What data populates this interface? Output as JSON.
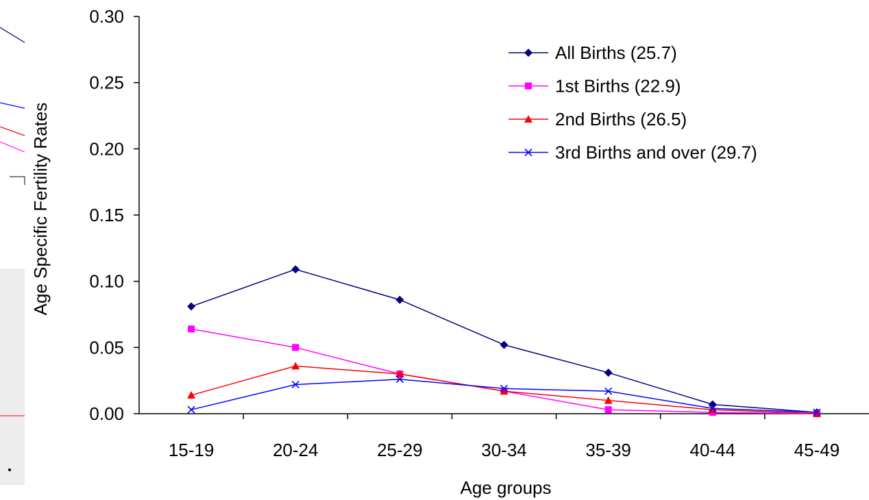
{
  "chart_data": {
    "type": "line",
    "title": "",
    "xlabel": "Age groups",
    "ylabel": "Age Specific Fertility Rates",
    "categories": [
      "15-19",
      "20-24",
      "25-29",
      "30-34",
      "35-39",
      "40-44",
      "45-49"
    ],
    "ylim": [
      0,
      0.3
    ],
    "yticks": [
      "0.00",
      "0.05",
      "0.10",
      "0.15",
      "0.20",
      "0.25",
      "0.30"
    ],
    "grid": false,
    "legend_position": "top-right",
    "series": [
      {
        "name": "All Births (25.7)",
        "color": "#000080",
        "marker": "diamond",
        "values": [
          0.081,
          0.109,
          0.086,
          0.052,
          0.031,
          0.007,
          0.001
        ]
      },
      {
        "name": "1st Births (22.9)",
        "color": "#ff00ff",
        "marker": "square",
        "values": [
          0.064,
          0.05,
          0.03,
          0.017,
          0.003,
          0.001,
          0.0
        ]
      },
      {
        "name": "2nd Births (26.5)",
        "color": "#ff0000",
        "marker": "triangle",
        "values": [
          0.014,
          0.036,
          0.03,
          0.017,
          0.01,
          0.003,
          0.0
        ]
      },
      {
        "name": "3rd Births and over (29.7)",
        "color": "#0000ff",
        "marker": "x",
        "values": [
          0.003,
          0.022,
          0.026,
          0.019,
          0.017,
          0.004,
          0.001
        ]
      }
    ]
  }
}
